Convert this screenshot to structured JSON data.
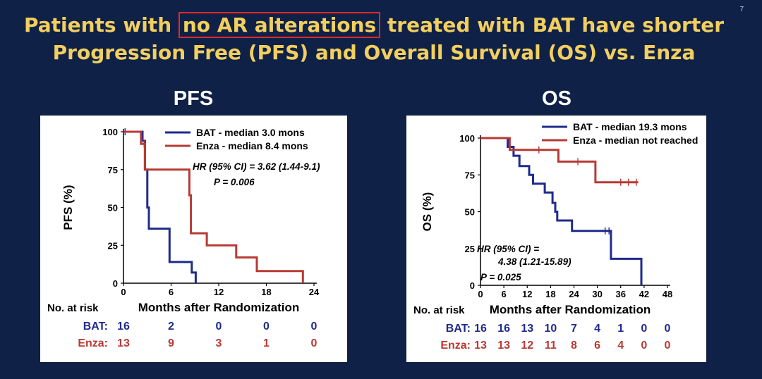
{
  "slide_number": "7",
  "title": {
    "line1_pre": "Patients with",
    "line1_highlight": "no AR alterations",
    "line1_post": "treated with BAT have shorter",
    "line2": "Progression Free (PFS) and Overall Survival (OS) vs. Enza"
  },
  "colors": {
    "background": "#0f2147",
    "title": "#f2cf5e",
    "highlight_box": "#e22929",
    "bat": "#1f2b8c",
    "enza": "#b83a34"
  },
  "chart_data": [
    {
      "type": "line",
      "panel_title": "PFS",
      "ylabel": "PFS (%)",
      "xlabel": "Months after Randomization",
      "xlim": [
        0,
        24
      ],
      "ylim": [
        0,
        100
      ],
      "xticks": [
        0,
        6,
        12,
        18,
        24
      ],
      "yticks": [
        0,
        25,
        50,
        75,
        100
      ],
      "series": [
        {
          "name": "BAT - median 3.0 mons",
          "color": "#1f2b8c",
          "steps": [
            [
              0,
              100
            ],
            [
              2.4,
              100
            ],
            [
              2.4,
              94
            ],
            [
              2.7,
              94
            ],
            [
              2.7,
              75
            ],
            [
              3.0,
              75
            ],
            [
              3.0,
              50
            ],
            [
              3.2,
              50
            ],
            [
              3.2,
              36
            ],
            [
              5.8,
              36
            ],
            [
              5.8,
              14
            ],
            [
              8.6,
              14
            ],
            [
              8.6,
              7
            ],
            [
              9.1,
              7
            ],
            [
              9.1,
              0
            ]
          ],
          "censor": [
            [
              0.2,
              100
            ]
          ]
        },
        {
          "name": "Enza - median 8.4 mons",
          "color": "#b83a34",
          "steps": [
            [
              0,
              100
            ],
            [
              2.2,
              100
            ],
            [
              2.2,
              92
            ],
            [
              2.7,
              92
            ],
            [
              2.7,
              75
            ],
            [
              8.3,
              75
            ],
            [
              8.3,
              58
            ],
            [
              8.5,
              58
            ],
            [
              8.5,
              33
            ],
            [
              10.5,
              33
            ],
            [
              10.5,
              25
            ],
            [
              14.2,
              25
            ],
            [
              14.2,
              17
            ],
            [
              16.8,
              17
            ],
            [
              16.8,
              8
            ],
            [
              22.6,
              8
            ],
            [
              22.6,
              0
            ]
          ],
          "censor": [
            [
              2.6,
              92
            ]
          ]
        }
      ],
      "annotations": [
        "HR (95% CI) = 3.62 (1.44-9.1)",
        "P = 0.006"
      ],
      "risk_table": {
        "header": "No. at risk",
        "rows": [
          {
            "label": "BAT:",
            "values": [
              "16",
              "2",
              "0",
              "0",
              "0"
            ]
          },
          {
            "label": "Enza:",
            "values": [
              "13",
              "9",
              "3",
              "1",
              "0"
            ]
          }
        ]
      }
    },
    {
      "type": "line",
      "panel_title": "OS",
      "ylabel": "OS (%)",
      "xlabel": "Months after Randomization",
      "xlim": [
        0,
        48
      ],
      "ylim": [
        0,
        100
      ],
      "xticks": [
        0,
        6,
        12,
        18,
        24,
        30,
        36,
        42,
        48
      ],
      "yticks": [
        0,
        25,
        50,
        75,
        100
      ],
      "series": [
        {
          "name": "BAT - median 19.3 mons",
          "color": "#1f2b8c",
          "steps": [
            [
              0,
              100
            ],
            [
              7,
              100
            ],
            [
              7,
              94
            ],
            [
              8.5,
              94
            ],
            [
              8.5,
              88
            ],
            [
              10,
              88
            ],
            [
              10,
              81
            ],
            [
              12.5,
              81
            ],
            [
              12.5,
              75
            ],
            [
              13.5,
              75
            ],
            [
              13.5,
              69
            ],
            [
              16.5,
              69
            ],
            [
              16.5,
              63
            ],
            [
              18.5,
              63
            ],
            [
              18.5,
              56
            ],
            [
              19.2,
              56
            ],
            [
              19.2,
              50
            ],
            [
              19.7,
              50
            ],
            [
              19.7,
              44
            ],
            [
              23.5,
              44
            ],
            [
              23.5,
              37
            ],
            [
              33.5,
              37
            ],
            [
              33.5,
              18
            ],
            [
              41.3,
              18
            ],
            [
              41.3,
              0
            ]
          ],
          "censor": [
            [
              32,
              37
            ],
            [
              33,
              37
            ]
          ]
        },
        {
          "name": "Enza - median not reached",
          "color": "#b83a34",
          "steps": [
            [
              0,
              100
            ],
            [
              7.5,
              100
            ],
            [
              7.5,
              92
            ],
            [
              20,
              92
            ],
            [
              20,
              84
            ],
            [
              29.5,
              84
            ],
            [
              29.5,
              70
            ],
            [
              40.5,
              70
            ]
          ],
          "censor": [
            [
              15,
              92
            ],
            [
              25,
              84
            ],
            [
              36,
              70
            ],
            [
              38,
              70
            ],
            [
              40,
              70
            ]
          ]
        }
      ],
      "annotations": [
        "HR (95% CI) =",
        "4.38 (1.21-15.89)",
        "P = 0.025"
      ],
      "risk_table": {
        "header": "No. at risk",
        "rows": [
          {
            "label": "BAT:",
            "values": [
              "16",
              "16",
              "13",
              "10",
              "7",
              "4",
              "1",
              "0",
              "0"
            ]
          },
          {
            "label": "Enza:",
            "values": [
              "13",
              "13",
              "12",
              "11",
              "8",
              "6",
              "4",
              "0",
              "0"
            ]
          }
        ]
      }
    }
  ]
}
